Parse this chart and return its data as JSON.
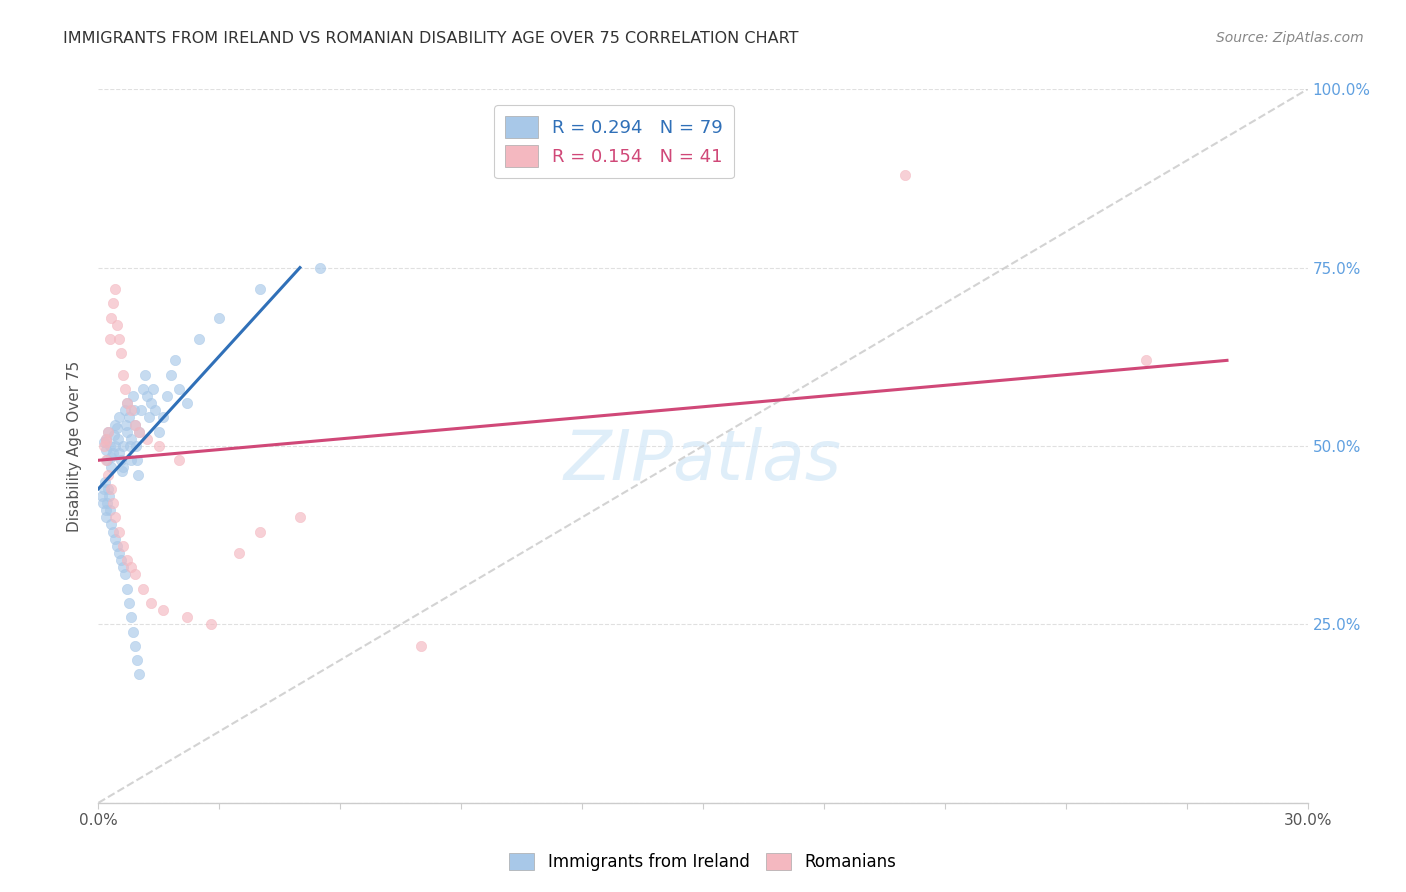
{
  "title": "IMMIGRANTS FROM IRELAND VS ROMANIAN DISABILITY AGE OVER 75 CORRELATION CHART",
  "source": "Source: ZipAtlas.com",
  "ylabel": "Disability Age Over 75",
  "r_ireland": 0.294,
  "n_ireland": 79,
  "r_romanian": 0.154,
  "n_romanian": 41,
  "legend_label1": "Immigrants from Ireland",
  "legend_label2": "Romanians",
  "ireland_color": "#a8c8e8",
  "romanian_color": "#f4b8c0",
  "ireland_line_color": "#3070b8",
  "romanian_line_color": "#d04878",
  "diagonal_color": "#c8c8c8",
  "background_color": "#ffffff",
  "grid_color": "#e0e0e0",
  "right_axis_color": "#60a0e0",
  "xlim": [
    0.0,
    30.0
  ],
  "ylim": [
    0.0,
    100.0
  ],
  "ireland_x": [
    0.15,
    0.18,
    0.2,
    0.22,
    0.25,
    0.28,
    0.3,
    0.32,
    0.35,
    0.38,
    0.4,
    0.42,
    0.45,
    0.48,
    0.5,
    0.52,
    0.55,
    0.58,
    0.6,
    0.62,
    0.65,
    0.68,
    0.7,
    0.72,
    0.75,
    0.78,
    0.8,
    0.82,
    0.85,
    0.88,
    0.9,
    0.92,
    0.95,
    0.98,
    1.0,
    1.05,
    1.1,
    1.15,
    1.2,
    1.25,
    1.3,
    1.35,
    1.4,
    1.5,
    1.6,
    1.7,
    1.8,
    1.9,
    2.0,
    2.2,
    0.1,
    0.12,
    0.14,
    0.16,
    0.18,
    0.2,
    0.22,
    0.24,
    0.26,
    0.28,
    0.3,
    0.35,
    0.4,
    0.45,
    0.5,
    0.55,
    0.6,
    0.65,
    0.7,
    0.75,
    0.8,
    0.85,
    0.9,
    0.95,
    1.0,
    2.5,
    3.0,
    4.0,
    5.5
  ],
  "ireland_y": [
    50.5,
    51.0,
    49.5,
    48.0,
    52.0,
    50.0,
    48.5,
    47.0,
    49.0,
    51.5,
    50.0,
    53.0,
    52.5,
    51.0,
    54.0,
    49.0,
    48.0,
    46.5,
    50.0,
    47.0,
    55.0,
    53.0,
    52.0,
    56.0,
    54.0,
    50.0,
    48.0,
    51.0,
    57.0,
    55.0,
    53.0,
    50.0,
    48.0,
    46.0,
    52.0,
    55.0,
    58.0,
    60.0,
    57.0,
    54.0,
    56.0,
    58.0,
    55.0,
    52.0,
    54.0,
    57.0,
    60.0,
    62.0,
    58.0,
    56.0,
    43.0,
    42.0,
    44.0,
    45.0,
    41.0,
    40.0,
    42.0,
    44.0,
    43.0,
    41.0,
    39.0,
    38.0,
    37.0,
    36.0,
    35.0,
    34.0,
    33.0,
    32.0,
    30.0,
    28.0,
    26.0,
    24.0,
    22.0,
    20.0,
    18.0,
    65.0,
    68.0,
    72.0,
    75.0
  ],
  "romanian_x": [
    0.15,
    0.18,
    0.2,
    0.25,
    0.28,
    0.3,
    0.35,
    0.4,
    0.45,
    0.5,
    0.55,
    0.6,
    0.65,
    0.7,
    0.8,
    0.9,
    1.0,
    1.2,
    1.5,
    2.0,
    0.2,
    0.25,
    0.3,
    0.35,
    0.4,
    0.5,
    0.6,
    0.7,
    0.8,
    0.9,
    1.1,
    1.3,
    1.6,
    2.2,
    2.8,
    3.5,
    4.0,
    5.0,
    8.0,
    20.0,
    26.0
  ],
  "romanian_y": [
    50.0,
    51.0,
    50.5,
    52.0,
    65.0,
    68.0,
    70.0,
    72.0,
    67.0,
    65.0,
    63.0,
    60.0,
    58.0,
    56.0,
    55.0,
    53.0,
    52.0,
    51.0,
    50.0,
    48.0,
    48.0,
    46.0,
    44.0,
    42.0,
    40.0,
    38.0,
    36.0,
    34.0,
    33.0,
    32.0,
    30.0,
    28.0,
    27.0,
    26.0,
    25.0,
    35.0,
    38.0,
    40.0,
    22.0,
    88.0,
    62.0
  ],
  "ire_line_x0": 0.0,
  "ire_line_y0": 44.0,
  "ire_line_x1": 5.0,
  "ire_line_y1": 75.0,
  "rom_line_x0": 0.0,
  "rom_line_y0": 48.0,
  "rom_line_x1": 28.0,
  "rom_line_y1": 62.0,
  "diag_x0": 0.0,
  "diag_y0": 0.0,
  "diag_x1": 30.0,
  "diag_y1": 100.0
}
